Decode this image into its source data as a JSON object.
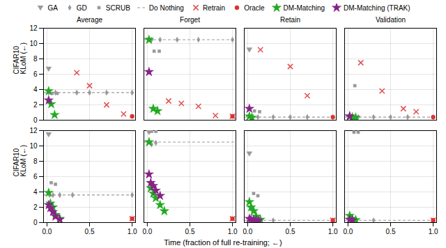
{
  "chart_data": {
    "type": "scatter",
    "xlabel": "Time (fraction of full re-training; ←)",
    "ylabel": "CIFAR10\nKLoM (←)",
    "columns": [
      "Average",
      "Forget",
      "Retain",
      "Validation"
    ],
    "xlim": [
      -0.04,
      1.04
    ],
    "ylim": [
      0,
      12
    ],
    "xticks": [
      {
        "value": 0,
        "label": "0.0"
      },
      0.5,
      {
        "value": 1,
        "label": "1.0"
      }
    ],
    "yticks": [
      0,
      2,
      4,
      6,
      8,
      10,
      12
    ],
    "grid": true,
    "legend": "top",
    "series": [
      {
        "name": "GA",
        "color": "#999999",
        "marker": "triangle-down"
      },
      {
        "name": "GD",
        "color": "#999999",
        "marker": "diamond"
      },
      {
        "name": "SCRUB",
        "color": "#999999",
        "marker": "square"
      },
      {
        "name": "Do Nothing",
        "color": "#999999",
        "type": "hline",
        "line_style": "dashed"
      },
      {
        "name": "Retrain",
        "color": "#e05050",
        "marker": "x"
      },
      {
        "name": "Oracle",
        "color": "#e03030",
        "marker": "circle"
      },
      {
        "name": "DM-Matching",
        "color": "#22aa22",
        "marker": "star"
      },
      {
        "name": "DM-Matching (TRAK)",
        "color": "#882288",
        "marker": "star"
      }
    ],
    "panels": [
      [
        [
          {
            "x": [
              0.02
            ],
            "values": [
              6.7
            ]
          },
          {
            "x": [
              0.02,
              0.1,
              0.35,
              0.5,
              0.7,
              1.0
            ],
            "values": [
              3.6,
              3.6,
              3.6,
              3.6,
              3.6,
              3.6
            ]
          },
          {
            "x": [
              0.06,
              0.12
            ],
            "values": [
              3.5,
              3.5
            ]
          },
          {
            "values": [
              3.6
            ]
          },
          {
            "x": [
              0.35,
              0.5,
              0.7,
              0.9
            ],
            "values": [
              6.2,
              4.5,
              2.0,
              0.8
            ]
          },
          {
            "x": [
              1.0
            ],
            "values": [
              0.5
            ]
          },
          {
            "x": [
              0.02,
              0.05,
              0.09
            ],
            "values": [
              3.8,
              2.1,
              0.7
            ]
          },
          {
            "x": [
              0.02
            ],
            "values": [
              2.6
            ]
          }
        ],
        [
          {
            "x": [
              0.02
            ],
            "values": [
              10.5
            ]
          },
          {
            "x": [
              0.05,
              0.15,
              0.35,
              0.6,
              1.0
            ],
            "values": [
              10.5,
              10.5,
              10.5,
              10.5,
              10.5
            ]
          },
          {
            "x": [
              0.08,
              0.14
            ],
            "values": [
              9.0,
              9.0
            ]
          },
          {
            "values": [
              10.5
            ]
          },
          {
            "x": [
              0.25,
              0.4,
              0.6,
              0.8,
              1.0
            ],
            "values": [
              2.5,
              2.2,
              1.8,
              0.6,
              0.5
            ]
          },
          {
            "x": [
              1.0
            ],
            "values": [
              0.5
            ]
          },
          {
            "x": [
              0.02,
              0.07,
              0.12
            ],
            "values": [
              10.5,
              1.5,
              1.2
            ]
          },
          {
            "x": [
              0.02
            ],
            "values": [
              6.3
            ]
          }
        ],
        [
          {
            "x": [
              0.02
            ],
            "values": [
              9.2
            ]
          },
          {
            "x": [
              0.05,
              0.12,
              0.3,
              0.5,
              0.7,
              1.0
            ],
            "values": [
              0.4,
              0.4,
              0.4,
              0.4,
              0.4,
              0.4
            ]
          },
          {
            "x": [
              0.08,
              0.14
            ],
            "values": [
              1.2,
              1.1
            ]
          },
          {
            "values": [
              0.4
            ]
          },
          {
            "x": [
              0.15,
              0.5,
              0.7
            ],
            "values": [
              9.2,
              7.0,
              3.2
            ]
          },
          {
            "x": [
              1.0
            ],
            "values": [
              0.4
            ]
          },
          {
            "x": [
              0.02,
              0.05
            ],
            "values": [
              0.5,
              0.35
            ]
          },
          {
            "x": [
              0.02
            ],
            "values": [
              1.5
            ]
          }
        ],
        [
          {
            "x": [],
            "values": []
          },
          {
            "x": [
              0.05,
              0.12,
              0.3,
              0.5,
              0.7,
              1.0
            ],
            "values": [
              0.4,
              0.4,
              0.4,
              0.4,
              0.4,
              0.4
            ]
          },
          {
            "x": [
              0.08
            ],
            "values": [
              4.5
            ]
          },
          {
            "values": [
              0.4
            ]
          },
          {
            "x": [
              0.15,
              0.4,
              0.65,
              0.8
            ],
            "values": [
              7.5,
              3.8,
              1.5,
              1.1
            ]
          },
          {
            "x": [
              1.0
            ],
            "values": [
              0.4
            ]
          },
          {
            "x": [
              0.02,
              0.05,
              0.09
            ],
            "values": [
              0.5,
              0.4,
              0.35
            ]
          },
          {
            "x": [
              0.02
            ],
            "values": [
              0.5
            ]
          }
        ]
      ],
      [
        [
          {
            "x": [
              0.02
            ],
            "values": [
              11.5
            ]
          },
          {
            "x": [
              0.03,
              0.07,
              0.15,
              0.3,
              1.0
            ],
            "values": [
              3.6,
              3.6,
              3.6,
              3.6,
              3.6
            ]
          },
          {
            "x": [
              0.05,
              0.1
            ],
            "values": [
              5.2,
              5.0
            ]
          },
          {
            "values": [
              3.6
            ]
          },
          {
            "x": [
              1.0
            ],
            "values": [
              0.5
            ]
          },
          {
            "x": [
              1.0
            ],
            "values": [
              0.5
            ]
          },
          {
            "x": [
              0.02,
              0.04,
              0.07,
              0.1,
              0.15
            ],
            "values": [
              3.9,
              2.5,
              2.0,
              1.0,
              0.5
            ]
          },
          {
            "x": [
              0.02,
              0.04,
              0.07,
              0.1,
              0.15
            ],
            "values": [
              2.3,
              1.9,
              1.4,
              0.8,
              0.4
            ]
          }
        ],
        [
          {
            "x": [
              0.02
            ],
            "values": [
              11.8
            ]
          },
          {
            "x": [
              0.05,
              0.1
            ],
            "values": [
              10.2,
              10.4
            ]
          },
          {
            "x": [
              0.05,
              0.1
            ],
            "values": [
              11.9,
              11.9
            ]
          },
          {
            "values": [
              10.5
            ]
          },
          {
            "x": [
              1.0
            ],
            "values": [
              0.5
            ]
          },
          {
            "x": [
              1.0
            ],
            "values": [
              0.5
            ]
          },
          {
            "x": [
              0.02,
              0.04,
              0.07,
              0.1,
              0.15,
              0.2
            ],
            "values": [
              10.5,
              4.5,
              3.8,
              3.2,
              2.3,
              1.5
            ]
          },
          {
            "x": [
              0.02,
              0.04,
              0.07,
              0.1,
              0.15
            ],
            "values": [
              6.3,
              5.2,
              4.8,
              4.2,
              3.5
            ]
          }
        ],
        [
          {
            "x": [
              0.02
            ],
            "values": [
              9.0
            ]
          },
          {
            "x": [
              0.05,
              0.1,
              0.3,
              1.0
            ],
            "values": [
              0.3,
              0.3,
              0.3,
              0.3
            ]
          },
          {
            "x": [
              0.07,
              0.12
            ],
            "values": [
              3.8,
              3.5
            ]
          },
          {
            "values": [
              0.3
            ]
          },
          {
            "x": [
              1.0
            ],
            "values": [
              0.3
            ]
          },
          {
            "x": [
              1.0
            ],
            "values": [
              0.3
            ]
          },
          {
            "x": [
              0.02,
              0.04,
              0.07,
              0.1,
              0.15
            ],
            "values": [
              2.7,
              2.0,
              1.5,
              0.8,
              0.4
            ]
          },
          {
            "x": [
              0.02,
              0.04,
              0.07,
              0.1,
              0.13
            ],
            "values": [
              0.5,
              0.4,
              0.35,
              0.3,
              0.25
            ]
          }
        ],
        [
          {
            "x": [],
            "values": []
          },
          {
            "x": [
              0.05,
              0.1,
              0.3,
              1.0
            ],
            "values": [
              0.3,
              0.3,
              0.3,
              0.3
            ]
          },
          {
            "x": [
              0.07,
              0.12
            ],
            "values": [
              11.8,
              11.8
            ]
          },
          {
            "values": [
              0.3
            ]
          },
          {
            "x": [
              1.0
            ],
            "values": [
              0.3
            ]
          },
          {
            "x": [
              1.0
            ],
            "values": [
              0.3
            ]
          },
          {
            "x": [
              0.02,
              0.05,
              0.09
            ],
            "values": [
              0.9,
              0.5,
              0.35
            ]
          },
          {
            "x": [
              0.02,
              0.05
            ],
            "values": [
              0.4,
              0.3
            ]
          }
        ]
      ]
    ]
  }
}
